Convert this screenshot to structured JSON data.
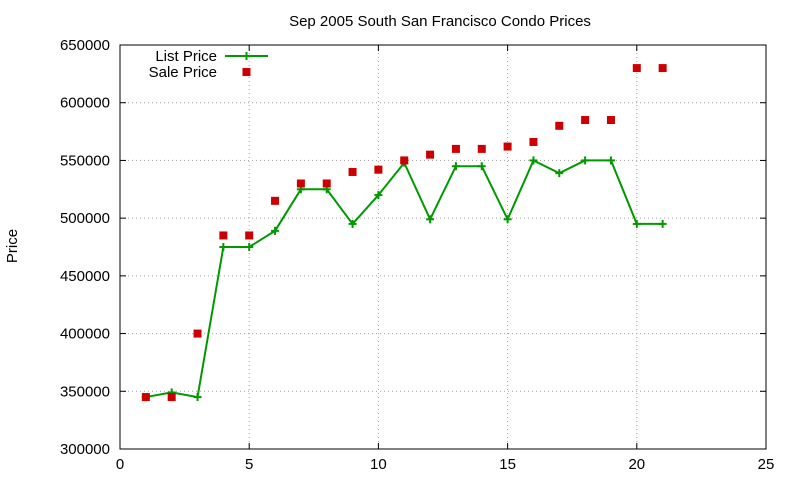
{
  "chart_data": {
    "type": "line",
    "title": "Sep 2005 South San Francisco Condo Prices",
    "xlabel": "",
    "ylabel": "Price",
    "xlim": [
      0,
      25
    ],
    "ylim": [
      300000,
      650000
    ],
    "x_ticks": [
      0,
      5,
      10,
      15,
      20,
      25
    ],
    "y_ticks": [
      300000,
      350000,
      400000,
      450000,
      500000,
      550000,
      600000,
      650000
    ],
    "grid": true,
    "legend_position": "top-left",
    "series": [
      {
        "name": "List Price",
        "style": "lines+points",
        "marker": "plus",
        "color": "#009900",
        "x": [
          1,
          2,
          3,
          4,
          5,
          6,
          7,
          8,
          9,
          10,
          11,
          12,
          13,
          14,
          15,
          16,
          17,
          18,
          19,
          20,
          21
        ],
        "y": [
          345000,
          349000,
          345000,
          475000,
          475000,
          489000,
          525000,
          525000,
          495000,
          520000,
          548000,
          499000,
          545000,
          545000,
          499000,
          550000,
          539000,
          550000,
          550000,
          495000,
          495000
        ]
      },
      {
        "name": "Sale Price",
        "style": "points",
        "marker": "square",
        "color": "#cc0000",
        "x": [
          1,
          2,
          3,
          4,
          5,
          6,
          7,
          8,
          9,
          10,
          11,
          12,
          13,
          14,
          15,
          16,
          17,
          18,
          19,
          20,
          21
        ],
        "y": [
          345000,
          345000,
          400000,
          485000,
          485000,
          515000,
          530000,
          530000,
          540000,
          542000,
          550000,
          555000,
          560000,
          560000,
          562000,
          566000,
          580000,
          585000,
          585000,
          630000,
          630000
        ]
      }
    ]
  }
}
